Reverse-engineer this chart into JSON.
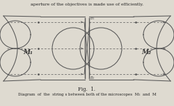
{
  "title_top": "aperture of the objectives is made use of efficiently.",
  "fig_label": "Fig.  1.",
  "caption": "Diagram  of  the  string s between both of the microscopes  M₁  and  M",
  "bg_color": "#dedad0",
  "text_color": "#222222",
  "label_M1": "M₁",
  "label_M2": "M₂",
  "label_B1": "B₁",
  "label_B2": "B₂"
}
